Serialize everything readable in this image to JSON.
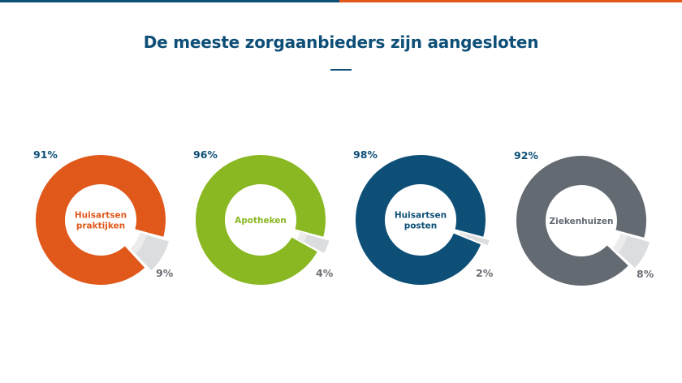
{
  "header": {
    "bar_colors": [
      "#0d4f77",
      "#e0581a"
    ],
    "title": "De meeste zorgaanbieders zijn aangesloten"
  },
  "chart_data": {
    "type": "pie",
    "variant": "donut",
    "title": "De meeste zorgaanbieders zijn aangesloten",
    "rest_color": "#dcdddf",
    "rest_label_color": "#6b6f75",
    "main_label_color": "#0d4f77",
    "charts": [
      {
        "name": "Huisartsen praktijken",
        "label_lines": [
          "Huisartsen",
          "praktijken"
        ],
        "connected": 91,
        "not_connected": 9,
        "connected_label": "91%",
        "rest_label": "9%",
        "color": "#e0581a"
      },
      {
        "name": "Apotheken",
        "label_lines": [
          "Apotheken"
        ],
        "connected": 96,
        "not_connected": 4,
        "connected_label": "96%",
        "rest_label": "4%",
        "color": "#8ab823"
      },
      {
        "name": "Huisartsen posten",
        "label_lines": [
          "Huisartsen",
          "posten"
        ],
        "connected": 98,
        "not_connected": 2,
        "connected_label": "98%",
        "rest_label": "2%",
        "color": "#0d4f77"
      },
      {
        "name": "Ziekenhuizen",
        "label_lines": [
          "Ziekenhuizen"
        ],
        "connected": 92,
        "not_connected": 8,
        "connected_label": "92%",
        "rest_label": "8%",
        "color": "#646a72"
      }
    ]
  }
}
